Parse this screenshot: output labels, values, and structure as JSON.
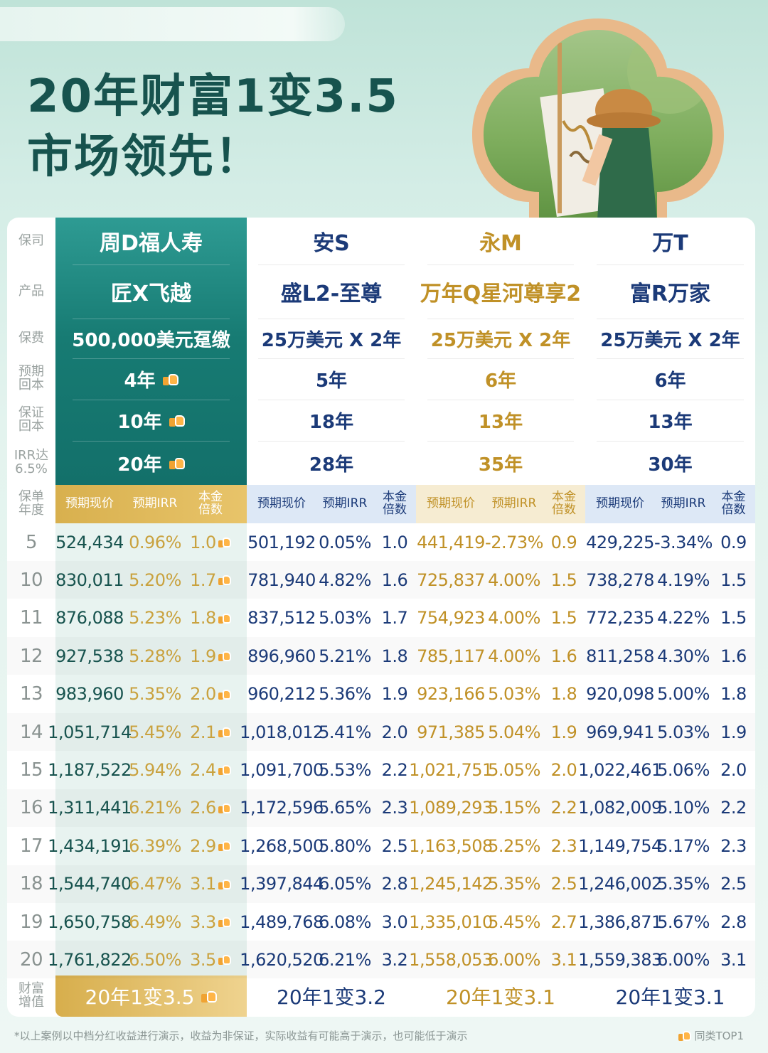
{
  "hero": {
    "line1": "20年财富1变3.5",
    "line2": "市场领先！"
  },
  "row_labels": {
    "company": "保司",
    "product": "产品",
    "premium": "保费",
    "expected_payback": "预期\n回本",
    "guaranteed_payback": "保证\n回本",
    "irr": "IRR达\n6.5%",
    "policy_year": "保单\n年度",
    "wealth": "财富\n增值"
  },
  "sub_headers": {
    "value": "预期现价",
    "irr": "预期IRR",
    "multiple": "本金\n倍数"
  },
  "products": [
    {
      "company": "周D福人寿",
      "product": "匠X飞越",
      "premium": "500,000美元趸缴",
      "expected_payback": "4年",
      "guaranteed_payback": "10年",
      "irr_65": "20年",
      "wealth": "20年1变3.5"
    },
    {
      "company": "安S",
      "product": "盛L2-至尊",
      "premium": "25万美元 X 2年",
      "expected_payback": "5年",
      "guaranteed_payback": "18年",
      "irr_65": "28年",
      "wealth": "20年1变3.2"
    },
    {
      "company": "永M",
      "product": "万年Q星河尊享2",
      "premium": "25万美元 X 2年",
      "expected_payback": "6年",
      "guaranteed_payback": "13年",
      "irr_65": "35年",
      "wealth": "20年1变3.1"
    },
    {
      "company": "万T",
      "product": "富R万家",
      "premium": "25万美元 X 2年",
      "expected_payback": "6年",
      "guaranteed_payback": "13年",
      "irr_65": "30年",
      "wealth": "20年1变3.1"
    }
  ],
  "rows": [
    {
      "year": "5",
      "vals": [
        [
          "524,434",
          "0.96%",
          "1.0"
        ],
        [
          "501,192",
          "0.05%",
          "1.0"
        ],
        [
          "441,419",
          "-2.73%",
          "0.9"
        ],
        [
          "429,225",
          "-3.34%",
          "0.9"
        ]
      ]
    },
    {
      "year": "10",
      "vals": [
        [
          "830,011",
          "5.20%",
          "1.7"
        ],
        [
          "781,940",
          "4.82%",
          "1.6"
        ],
        [
          "725,837",
          "4.00%",
          "1.5"
        ],
        [
          "738,278",
          "4.19%",
          "1.5"
        ]
      ]
    },
    {
      "year": "11",
      "vals": [
        [
          "876,088",
          "5.23%",
          "1.8"
        ],
        [
          "837,512",
          "5.03%",
          "1.7"
        ],
        [
          "754,923",
          "4.00%",
          "1.5"
        ],
        [
          "772,235",
          "4.22%",
          "1.5"
        ]
      ]
    },
    {
      "year": "12",
      "vals": [
        [
          "927,538",
          "5.28%",
          "1.9"
        ],
        [
          "896,960",
          "5.21%",
          "1.8"
        ],
        [
          "785,117",
          "4.00%",
          "1.6"
        ],
        [
          "811,258",
          "4.30%",
          "1.6"
        ]
      ]
    },
    {
      "year": "13",
      "vals": [
        [
          "983,960",
          "5.35%",
          "2.0"
        ],
        [
          "960,212",
          "5.36%",
          "1.9"
        ],
        [
          "923,166",
          "5.03%",
          "1.8"
        ],
        [
          "920,098",
          "5.00%",
          "1.8"
        ]
      ]
    },
    {
      "year": "14",
      "vals": [
        [
          "1,051,714",
          "5.45%",
          "2.1"
        ],
        [
          "1,018,012",
          "5.41%",
          "2.0"
        ],
        [
          "971,385",
          "5.04%",
          "1.9"
        ],
        [
          "969,941",
          "5.03%",
          "1.9"
        ]
      ]
    },
    {
      "year": "15",
      "vals": [
        [
          "1,187,522",
          "5.94%",
          "2.4"
        ],
        [
          "1,091,700",
          "5.53%",
          "2.2"
        ],
        [
          "1,021,751",
          "5.05%",
          "2.0"
        ],
        [
          "1,022,461",
          "5.06%",
          "2.0"
        ]
      ]
    },
    {
      "year": "16",
      "vals": [
        [
          "1,311,441",
          "6.21%",
          "2.6"
        ],
        [
          "1,172,596",
          "5.65%",
          "2.3"
        ],
        [
          "1,089,293",
          "5.15%",
          "2.2"
        ],
        [
          "1,082,009",
          "5.10%",
          "2.2"
        ]
      ]
    },
    {
      "year": "17",
      "vals": [
        [
          "1,434,191",
          "6.39%",
          "2.9"
        ],
        [
          "1,268,500",
          "5.80%",
          "2.5"
        ],
        [
          "1,163,508",
          "5.25%",
          "2.3"
        ],
        [
          "1,149,754",
          "5.17%",
          "2.3"
        ]
      ]
    },
    {
      "year": "18",
      "vals": [
        [
          "1,544,740",
          "6.47%",
          "3.1"
        ],
        [
          "1,397,844",
          "6.05%",
          "2.8"
        ],
        [
          "1,245,142",
          "5.35%",
          "2.5"
        ],
        [
          "1,246,002",
          "5.35%",
          "2.5"
        ]
      ]
    },
    {
      "year": "19",
      "vals": [
        [
          "1,650,758",
          "6.49%",
          "3.3"
        ],
        [
          "1,489,768",
          "6.08%",
          "3.0"
        ],
        [
          "1,335,010",
          "5.45%",
          "2.7"
        ],
        [
          "1,386,871",
          "5.67%",
          "2.8"
        ]
      ]
    },
    {
      "year": "20",
      "vals": [
        [
          "1,761,822",
          "6.50%",
          "3.5"
        ],
        [
          "1,620,520",
          "6.21%",
          "3.2"
        ],
        [
          "1,558,053",
          "6.00%",
          "3.1"
        ],
        [
          "1,559,383",
          "6.00%",
          "3.1"
        ]
      ]
    }
  ],
  "footnote": "*以上案例以中档分红收益进行演示，收益为非保证，实际收益有可能高于演示，也可能低于演示",
  "badge": "同类TOP1",
  "colors": {
    "teal_dark": "#13706a",
    "teal_text": "#17534e",
    "gold": "#c9a23f",
    "gold_text": "#c09127",
    "navy_text": "#1b3a78",
    "orange_text": "#d68a1a"
  },
  "icons": {
    "thumbs_up": "thumbs-up-icon"
  }
}
